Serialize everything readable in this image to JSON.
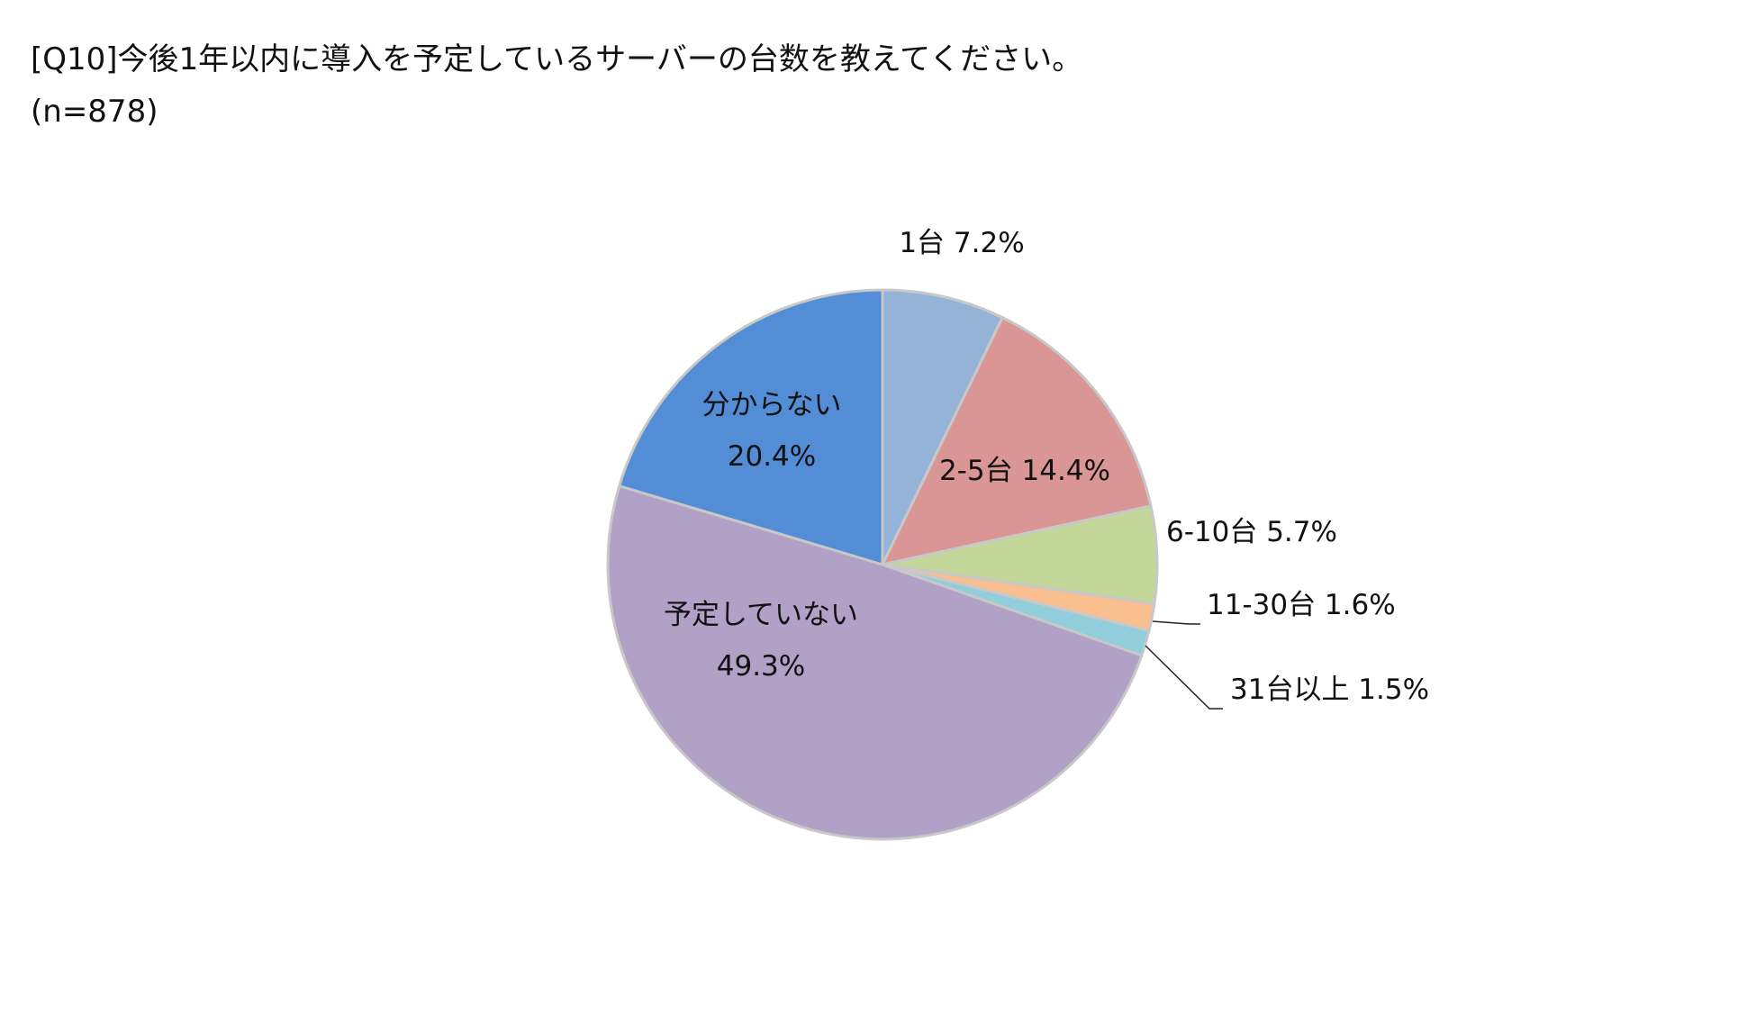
{
  "title": "[Q10]今後1年以内に導入を予定しているサーバーの台数を教えてください。",
  "subtitle": "(n=878)",
  "chart_data": {
    "type": "pie",
    "start_angle_deg": 0,
    "direction": "clockwise",
    "slices": [
      {
        "label": "1台",
        "value": 7.2,
        "display": "7.2%",
        "color": "#95b3d7"
      },
      {
        "label": "2-5台",
        "value": 14.4,
        "display": "14.4%",
        "color": "#da9694"
      },
      {
        "label": "6-10台",
        "value": 5.7,
        "display": "5.7%",
        "color": "#c4d79b"
      },
      {
        "label": "11-30台",
        "value": 1.6,
        "display": "1.6%",
        "color": "#fabf8f"
      },
      {
        "label": "31台以上",
        "value": 1.5,
        "display": "1.5%",
        "color": "#92cddc"
      },
      {
        "label": "予定していない",
        "value": 49.3,
        "display": "49.3%",
        "color": "#b2a1c7"
      },
      {
        "label": "分からない",
        "value": 20.4,
        "display": "20.4%",
        "color": "#538dd5"
      }
    ]
  }
}
